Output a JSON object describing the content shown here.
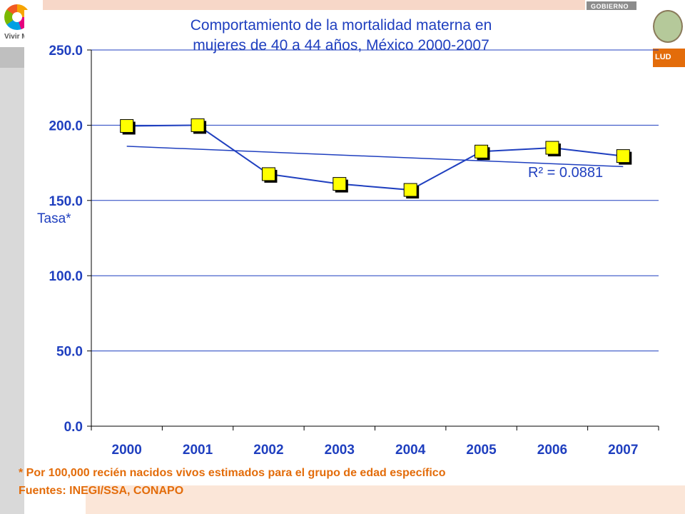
{
  "header": {
    "logo_left_text": "Vivir M",
    "gob_text": "GOBIERNO",
    "salud_text": "LUD"
  },
  "chart_data": {
    "type": "line",
    "title_line1": "Comportamiento de la mortalidad materna en",
    "title_line2": "mujeres de 40 a 44 años, México 2000-2007",
    "ylabel": "Tasa*",
    "xlabel": "",
    "ylim": [
      0,
      250
    ],
    "yticks": [
      "0.0",
      "50.0",
      "100.0",
      "150.0",
      "200.0",
      "250.0"
    ],
    "categories": [
      "2000",
      "2001",
      "2002",
      "2003",
      "2004",
      "2005",
      "2006",
      "2007"
    ],
    "series": [
      {
        "values": [
          199.5,
          200.0,
          167.5,
          161.0,
          157.0,
          182.5,
          185.0,
          179.5
        ]
      }
    ],
    "trendline": {
      "start": 186.0,
      "end": 172.5
    },
    "annotation": "R² = 0.0881",
    "grid": true,
    "colors": {
      "line": "#1f3fbf",
      "marker_fill": "#ffff00",
      "marker_stroke": "#000000",
      "title": "#1f3fbf",
      "axis": "#000000"
    }
  },
  "footer": {
    "footnote": "* Por 100,000 recién nacidos vivos estimados para el grupo de edad específico",
    "source": "Fuentes: INEGI/SSA, CONAPO"
  }
}
